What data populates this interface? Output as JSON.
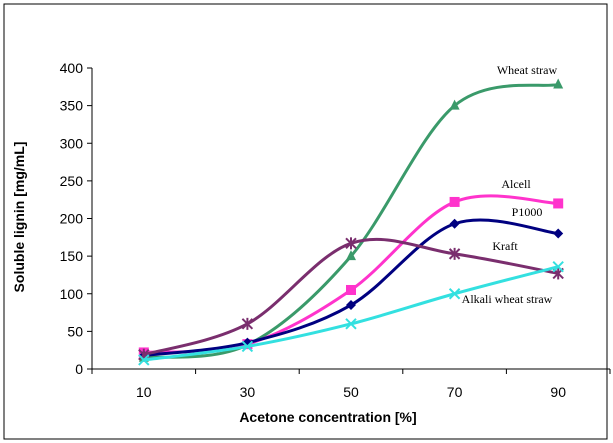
{
  "chart_data": {
    "type": "line",
    "title": "",
    "xlabel": "Acetone concentration [%]",
    "ylabel": "Soluble lignin [mg/mL]",
    "categories": [
      "10",
      "30",
      "50",
      "70",
      "90"
    ],
    "x": [
      10,
      30,
      50,
      70,
      90
    ],
    "ylim": [
      0,
      400
    ],
    "yticks": [
      0,
      50,
      100,
      150,
      200,
      250,
      300,
      350,
      400
    ],
    "grid": false,
    "legend": "inline labels",
    "series": [
      {
        "name": "Wheat straw",
        "color": "#3a9a6a",
        "marker": "triangle",
        "values": [
          15,
          32,
          150,
          350,
          378
        ]
      },
      {
        "name": "Alcell",
        "color": "#ff33cc",
        "marker": "square",
        "values": [
          22,
          33,
          105,
          222,
          220
        ]
      },
      {
        "name": "P1000",
        "color": "#000080",
        "marker": "diamond",
        "values": [
          18,
          35,
          85,
          193,
          180
        ]
      },
      {
        "name": "Kraft",
        "color": "#7a2e6e",
        "marker": "asterisk",
        "values": [
          19,
          60,
          167,
          153,
          127
        ]
      },
      {
        "name": "Alkali wheat straw",
        "color": "#33e0e0",
        "marker": "x",
        "values": [
          12,
          30,
          60,
          100,
          136
        ]
      }
    ]
  }
}
